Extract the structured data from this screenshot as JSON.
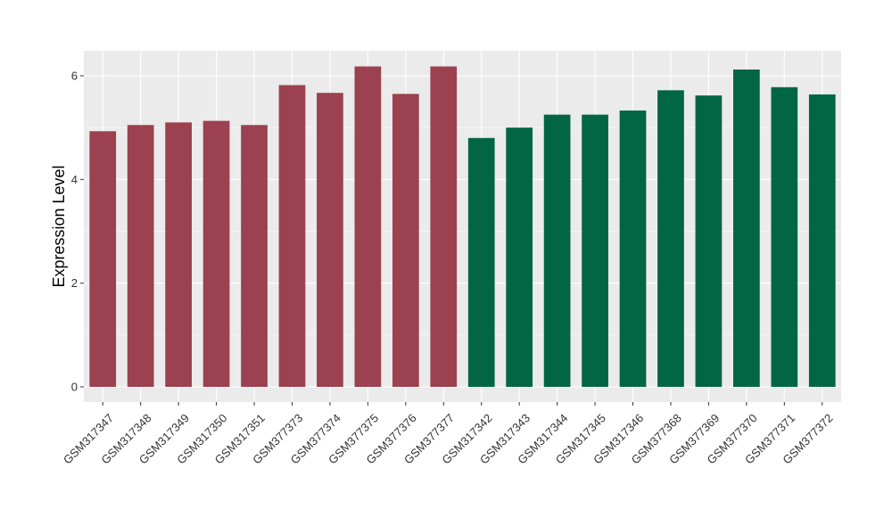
{
  "chart_data": {
    "type": "bar",
    "title": "",
    "xlabel": "",
    "ylabel": "Expression Level",
    "ylim": [
      0,
      6.5
    ],
    "yticks": [
      0,
      2,
      4,
      6
    ],
    "grid": true,
    "legend": "none",
    "colors": {
      "group1": "#9b4150",
      "group2": "#026644",
      "panel": "#ebebeb",
      "gridline": "#ffffff"
    },
    "categories": [
      "GSM317347",
      "GSM317348",
      "GSM317349",
      "GSM317350",
      "GSM317351",
      "GSM377373",
      "GSM377374",
      "GSM377375",
      "GSM377376",
      "GSM377377",
      "GSM317342",
      "GSM317343",
      "GSM317344",
      "GSM317345",
      "GSM317346",
      "GSM377368",
      "GSM377369",
      "GSM377370",
      "GSM377371",
      "GSM377372"
    ],
    "values": [
      4.93,
      5.05,
      5.1,
      5.13,
      5.05,
      5.82,
      5.67,
      6.18,
      5.65,
      6.18,
      4.8,
      5.0,
      5.25,
      5.25,
      5.33,
      5.72,
      5.62,
      6.12,
      5.78,
      5.64
    ],
    "groups": [
      "group1",
      "group1",
      "group1",
      "group1",
      "group1",
      "group1",
      "group1",
      "group1",
      "group1",
      "group1",
      "group2",
      "group2",
      "group2",
      "group2",
      "group2",
      "group2",
      "group2",
      "group2",
      "group2",
      "group2"
    ]
  }
}
